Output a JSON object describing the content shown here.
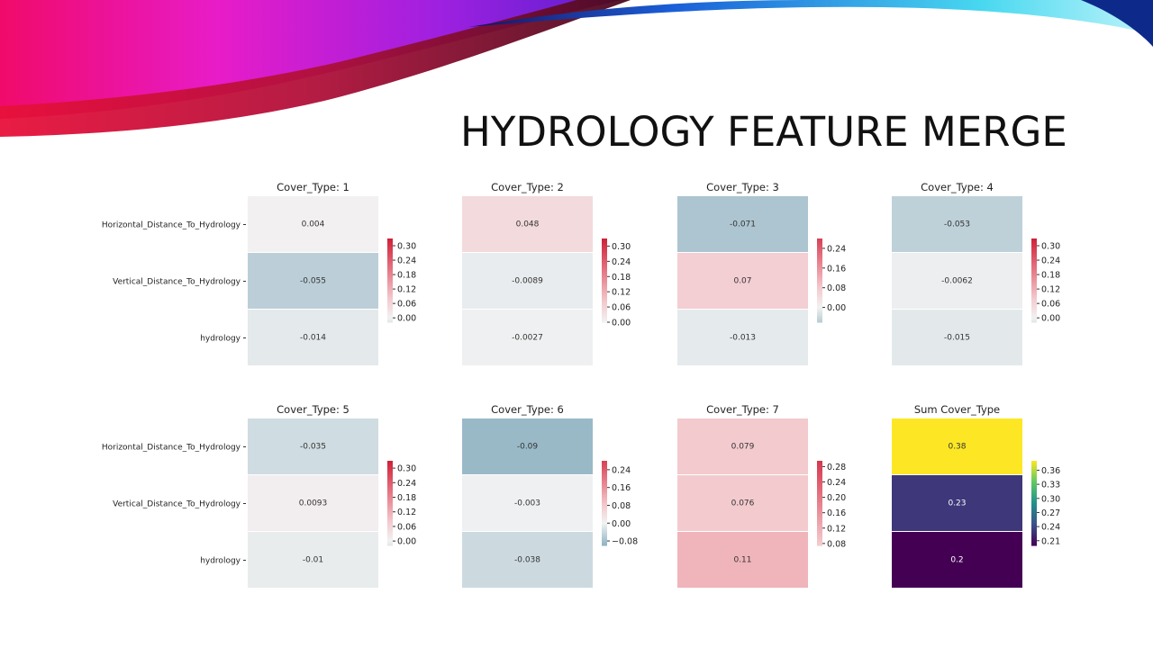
{
  "slide": {
    "title": "HYDROLOGY FEATURE MERGE"
  },
  "chart_data": [
    {
      "type": "heatmap",
      "title": "Cover_Type: 1",
      "rows": [
        "Horizontal_Distance_To_Hydrology",
        "Vertical_Distance_To_Hydrology",
        "hydrology"
      ],
      "values": [
        0.004,
        -0.055,
        -0.014
      ],
      "labels": [
        "0.004",
        "-0.055",
        "-0.014"
      ],
      "colorbar": {
        "cmap": "diverging",
        "range": [
          -0.018,
          0.33
        ],
        "ticks": [
          "0.00",
          "0.06",
          "0.12",
          "0.18",
          "0.24",
          "0.30"
        ]
      }
    },
    {
      "type": "heatmap",
      "title": "Cover_Type: 2",
      "rows": [
        "Horizontal_Distance_To_Hydrology",
        "Vertical_Distance_To_Hydrology",
        "hydrology"
      ],
      "values": [
        0.048,
        -0.0089,
        -0.0027
      ],
      "labels": [
        "0.048",
        "-0.0089",
        "-0.0027"
      ],
      "colorbar": {
        "cmap": "diverging",
        "range": [
          0.0,
          0.33
        ],
        "ticks": [
          "0.00",
          "0.06",
          "0.12",
          "0.18",
          "0.24",
          "0.30"
        ]
      }
    },
    {
      "type": "heatmap",
      "title": "Cover_Type: 3",
      "rows": [
        "Horizontal_Distance_To_Hydrology",
        "Vertical_Distance_To_Hydrology",
        "hydrology"
      ],
      "values": [
        -0.071,
        0.07,
        -0.013
      ],
      "labels": [
        "-0.071",
        "0.07",
        "-0.013"
      ],
      "colorbar": {
        "cmap": "diverging",
        "range": [
          -0.06,
          0.28
        ],
        "ticks": [
          "0.00",
          "0.08",
          "0.16",
          "0.24"
        ]
      }
    },
    {
      "type": "heatmap",
      "title": "Cover_Type: 4",
      "rows": [
        "Horizontal_Distance_To_Hydrology",
        "Vertical_Distance_To_Hydrology",
        "hydrology"
      ],
      "values": [
        -0.053,
        -0.0062,
        -0.015
      ],
      "labels": [
        "-0.053",
        "-0.0062",
        "-0.015"
      ],
      "colorbar": {
        "cmap": "diverging",
        "range": [
          -0.018,
          0.33
        ],
        "ticks": [
          "0.00",
          "0.06",
          "0.12",
          "0.18",
          "0.24",
          "0.30"
        ]
      }
    },
    {
      "type": "heatmap",
      "title": "Cover_Type: 5",
      "rows": [
        "Horizontal_Distance_To_Hydrology",
        "Vertical_Distance_To_Hydrology",
        "hydrology"
      ],
      "values": [
        -0.035,
        0.0093,
        -0.01
      ],
      "labels": [
        "-0.035",
        "0.0093",
        "-0.01"
      ],
      "colorbar": {
        "cmap": "diverging",
        "range": [
          -0.018,
          0.33
        ],
        "ticks": [
          "0.00",
          "0.06",
          "0.12",
          "0.18",
          "0.24",
          "0.30"
        ]
      }
    },
    {
      "type": "heatmap",
      "title": "Cover_Type: 6",
      "rows": [
        "Horizontal_Distance_To_Hydrology",
        "Vertical_Distance_To_Hydrology",
        "hydrology"
      ],
      "values": [
        -0.09,
        -0.003,
        -0.038
      ],
      "labels": [
        "-0.09",
        "-0.003",
        "-0.038"
      ],
      "colorbar": {
        "cmap": "diverging",
        "range": [
          -0.1,
          0.28
        ],
        "ticks": [
          "−0.08",
          "0.00",
          "0.08",
          "0.16",
          "0.24"
        ]
      }
    },
    {
      "type": "heatmap",
      "title": "Cover_Type: 7",
      "rows": [
        "Horizontal_Distance_To_Hydrology",
        "Vertical_Distance_To_Hydrology",
        "hydrology"
      ],
      "values": [
        0.079,
        0.076,
        0.11
      ],
      "labels": [
        "0.079",
        "0.076",
        "0.11"
      ],
      "colorbar": {
        "cmap": "diverging",
        "range": [
          0.075,
          0.295
        ],
        "ticks": [
          "0.08",
          "0.12",
          "0.16",
          "0.20",
          "0.24",
          "0.28"
        ]
      }
    },
    {
      "type": "heatmap",
      "title": "Sum Cover_Type",
      "rows": [
        "Horizontal_Distance_To_Hydrology",
        "Vertical_Distance_To_Hydrology",
        "hydrology"
      ],
      "values": [
        0.38,
        0.23,
        0.2
      ],
      "labels": [
        "0.38",
        "0.23",
        "0.2"
      ],
      "colorbar": {
        "cmap": "viridis",
        "range": [
          0.2,
          0.38
        ],
        "ticks": [
          "0.21",
          "0.24",
          "0.27",
          "0.30",
          "0.33",
          "0.36"
        ]
      }
    }
  ]
}
